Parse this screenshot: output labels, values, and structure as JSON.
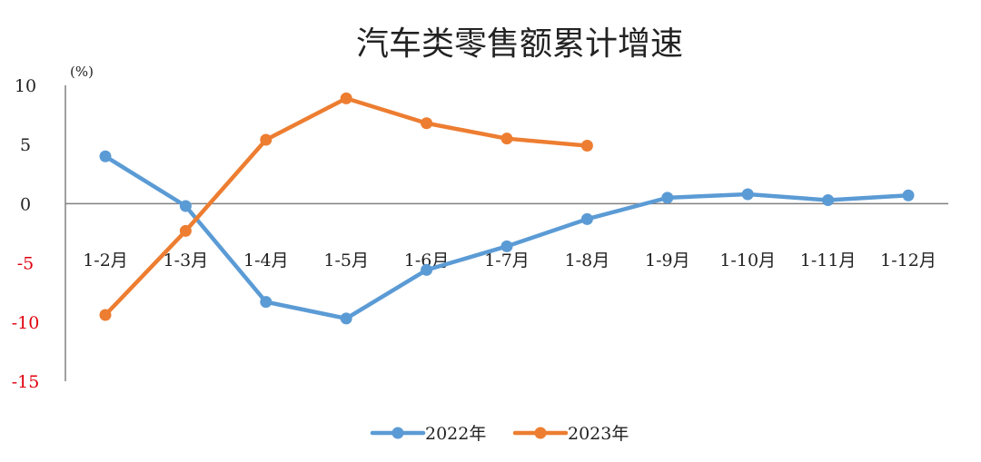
{
  "chart_data": {
    "type": "line",
    "title": "汽车类零售额累计增速",
    "ylabel": "(%)",
    "categories": [
      "1-2月",
      "1-3月",
      "1-4月",
      "1-5月",
      "1-6月",
      "1-7月",
      "1-8月",
      "1-9月",
      "1-10月",
      "1-11月",
      "1-12月"
    ],
    "y_ticks": [
      10,
      5,
      0,
      -5,
      -10,
      -15
    ],
    "ylim": [
      -15,
      10
    ],
    "grid": false,
    "legend_position": "bottom",
    "series": [
      {
        "name": "2022年",
        "color": "#5B9BD5",
        "values": [
          4.0,
          -0.2,
          -8.3,
          -9.7,
          -5.6,
          -3.6,
          -1.3,
          0.5,
          0.8,
          0.3,
          0.7
        ]
      },
      {
        "name": "2023年",
        "color": "#ED7D31",
        "values": [
          -9.4,
          -2.3,
          5.4,
          8.9,
          6.8,
          5.5,
          4.9,
          null,
          null,
          null,
          null
        ]
      }
    ],
    "colors": {
      "positive_tick": "#222222",
      "negative_tick": "#E0000D",
      "axis": "#808080"
    }
  }
}
